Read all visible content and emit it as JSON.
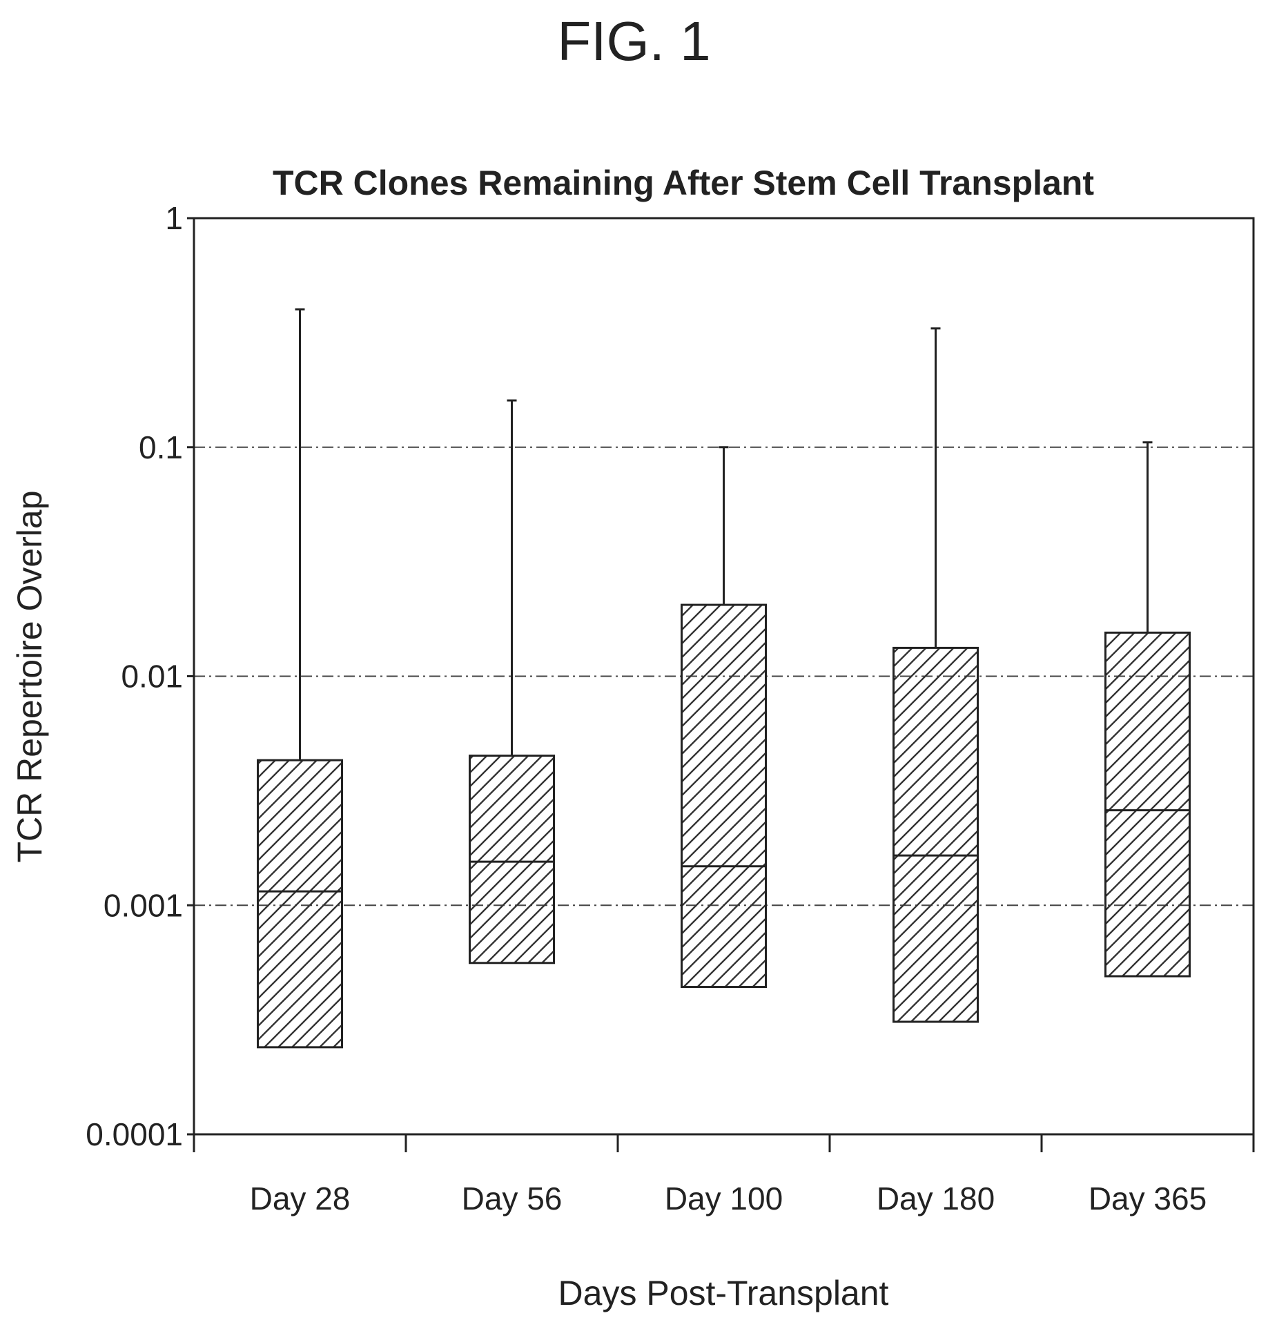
{
  "figure_label": "FIG. 1",
  "chart_data": {
    "type": "box",
    "title": "TCR Clones Remaining After Stem Cell Transplant",
    "xlabel": "Days Post-Transplant",
    "ylabel": "TCR Repertoire Overlap",
    "yscale": "log",
    "ylim": [
      0.0001,
      1
    ],
    "yticks": [
      "1",
      "0.1",
      "0.01",
      "0.001",
      "0.0001"
    ],
    "grid": "horizontal dashed at 0.1, 0.01 and 0.001",
    "fill": "diagonal hatch",
    "categories": [
      "Day 28",
      "Day 56",
      "Day 100",
      "Day 180",
      "Day 365"
    ],
    "boxes": [
      {
        "q1": 0.00024,
        "median": 0.00115,
        "q3": 0.0043,
        "whisker_high": 0.4
      },
      {
        "q1": 0.00056,
        "median": 0.00155,
        "q3": 0.0045,
        "whisker_high": 0.16
      },
      {
        "q1": 0.00044,
        "median": 0.00148,
        "q3": 0.0205,
        "whisker_high": 0.1
      },
      {
        "q1": 0.00031,
        "median": 0.00165,
        "q3": 0.0133,
        "whisker_high": 0.33
      },
      {
        "q1": 0.00049,
        "median": 0.0026,
        "q3": 0.0155,
        "whisker_high": 0.105
      }
    ]
  }
}
